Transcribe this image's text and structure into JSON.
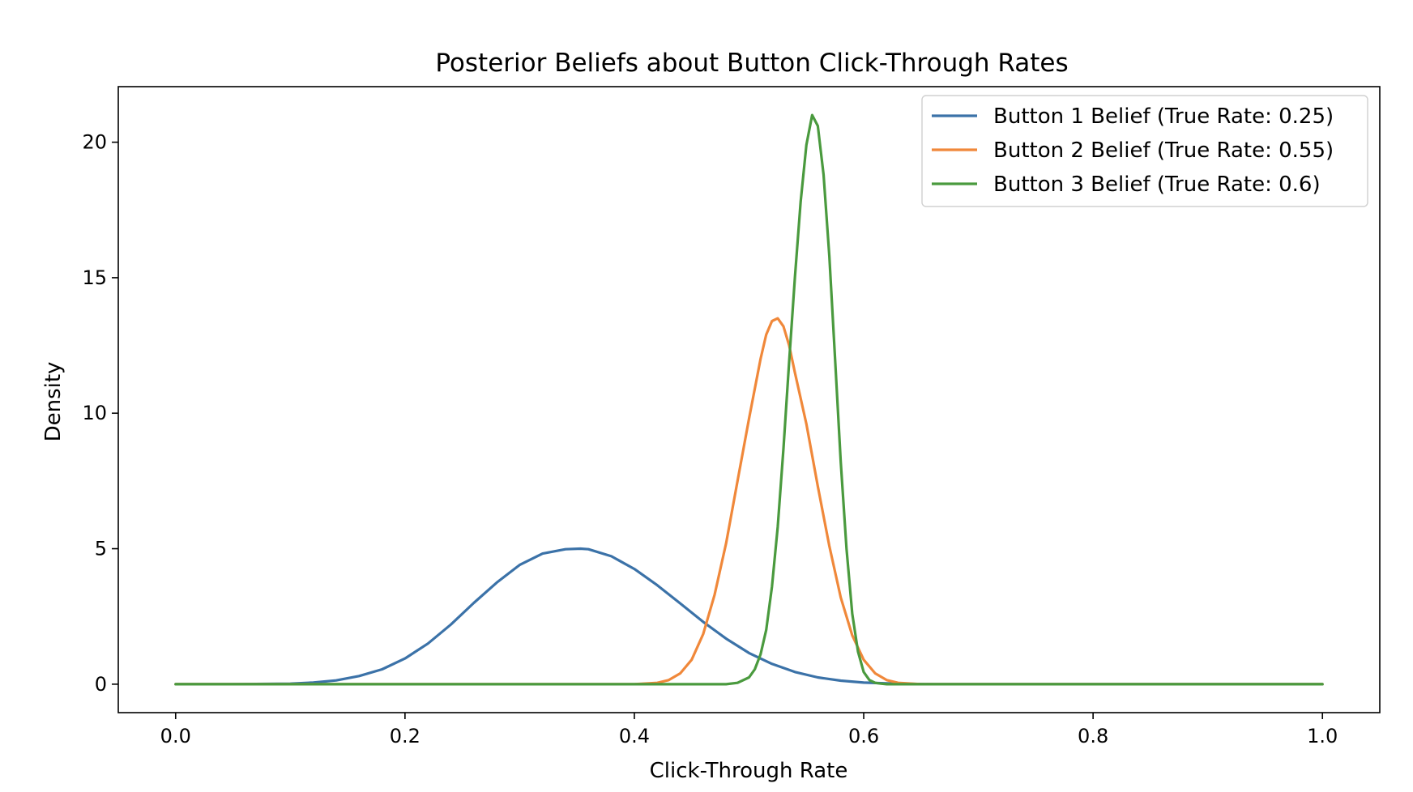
{
  "chart_data": {
    "type": "line",
    "title": "Posterior Beliefs about Button Click-Through Rates",
    "xlabel": "Click-Through Rate",
    "ylabel": "Density",
    "xlim": [
      -0.05,
      1.05
    ],
    "ylim": [
      -1.05,
      22.05
    ],
    "grid": false,
    "legend_position": "top-right",
    "x_ticks": [
      {
        "value": 0.0,
        "label": "0.0"
      },
      {
        "value": 0.2,
        "label": "0.2"
      },
      {
        "value": 0.4,
        "label": "0.4"
      },
      {
        "value": 0.6,
        "label": "0.6"
      },
      {
        "value": 0.8,
        "label": "0.8"
      },
      {
        "value": 1.0,
        "label": "1.0"
      }
    ],
    "y_ticks": [
      {
        "value": 0,
        "label": "0"
      },
      {
        "value": 5,
        "label": "5"
      },
      {
        "value": 10,
        "label": "10"
      },
      {
        "value": 15,
        "label": "15"
      },
      {
        "value": 20,
        "label": "20"
      }
    ],
    "series": [
      {
        "name": "Button 1 Belief (True Rate: 0.25)",
        "color": "#3b72a8",
        "x": [
          0.0,
          0.05,
          0.1,
          0.12,
          0.14,
          0.16,
          0.18,
          0.2,
          0.22,
          0.24,
          0.26,
          0.28,
          0.3,
          0.32,
          0.34,
          0.353,
          0.36,
          0.38,
          0.4,
          0.42,
          0.44,
          0.46,
          0.48,
          0.5,
          0.52,
          0.54,
          0.56,
          0.58,
          0.6,
          0.62,
          0.64,
          0.66,
          0.7,
          0.8,
          0.9,
          1.0
        ],
        "y": [
          0.0,
          0.0,
          0.02,
          0.06,
          0.14,
          0.3,
          0.55,
          0.95,
          1.5,
          2.2,
          3.0,
          3.75,
          4.4,
          4.82,
          4.98,
          5.0,
          4.98,
          4.72,
          4.25,
          3.65,
          2.98,
          2.3,
          1.68,
          1.15,
          0.75,
          0.45,
          0.25,
          0.13,
          0.06,
          0.03,
          0.01,
          0.0,
          0.0,
          0.0,
          0.0,
          0.0
        ]
      },
      {
        "name": "Button 2 Belief (True Rate: 0.55)",
        "color": "#f0883a",
        "x": [
          0.0,
          0.3,
          0.4,
          0.42,
          0.43,
          0.44,
          0.45,
          0.46,
          0.47,
          0.48,
          0.49,
          0.5,
          0.51,
          0.515,
          0.52,
          0.525,
          0.53,
          0.535,
          0.54,
          0.55,
          0.56,
          0.57,
          0.58,
          0.59,
          0.6,
          0.61,
          0.62,
          0.63,
          0.65,
          0.7,
          0.8,
          0.9,
          1.0
        ],
        "y": [
          0.0,
          0.0,
          0.0,
          0.05,
          0.15,
          0.4,
          0.9,
          1.85,
          3.3,
          5.2,
          7.5,
          9.8,
          12.0,
          12.9,
          13.4,
          13.5,
          13.2,
          12.5,
          11.5,
          9.6,
          7.3,
          5.1,
          3.2,
          1.8,
          0.9,
          0.4,
          0.15,
          0.05,
          0.0,
          0.0,
          0.0,
          0.0,
          0.0
        ]
      },
      {
        "name": "Button 3 Belief (True Rate: 0.6)",
        "color": "#4a9a3e",
        "x": [
          0.0,
          0.3,
          0.48,
          0.49,
          0.5,
          0.505,
          0.51,
          0.515,
          0.52,
          0.525,
          0.53,
          0.535,
          0.54,
          0.545,
          0.55,
          0.555,
          0.56,
          0.565,
          0.57,
          0.575,
          0.58,
          0.585,
          0.59,
          0.595,
          0.6,
          0.605,
          0.61,
          0.615,
          0.62,
          0.63,
          0.65,
          0.7,
          0.8,
          0.9,
          1.0
        ],
        "y": [
          0.0,
          0.0,
          0.0,
          0.05,
          0.25,
          0.55,
          1.1,
          2.0,
          3.6,
          5.8,
          8.7,
          11.9,
          15.0,
          17.8,
          19.9,
          21.0,
          20.6,
          18.8,
          15.8,
          12.0,
          8.2,
          5.0,
          2.6,
          1.2,
          0.45,
          0.15,
          0.05,
          0.02,
          0.0,
          0.0,
          0.0,
          0.0,
          0.0,
          0.0,
          0.0
        ]
      }
    ]
  }
}
